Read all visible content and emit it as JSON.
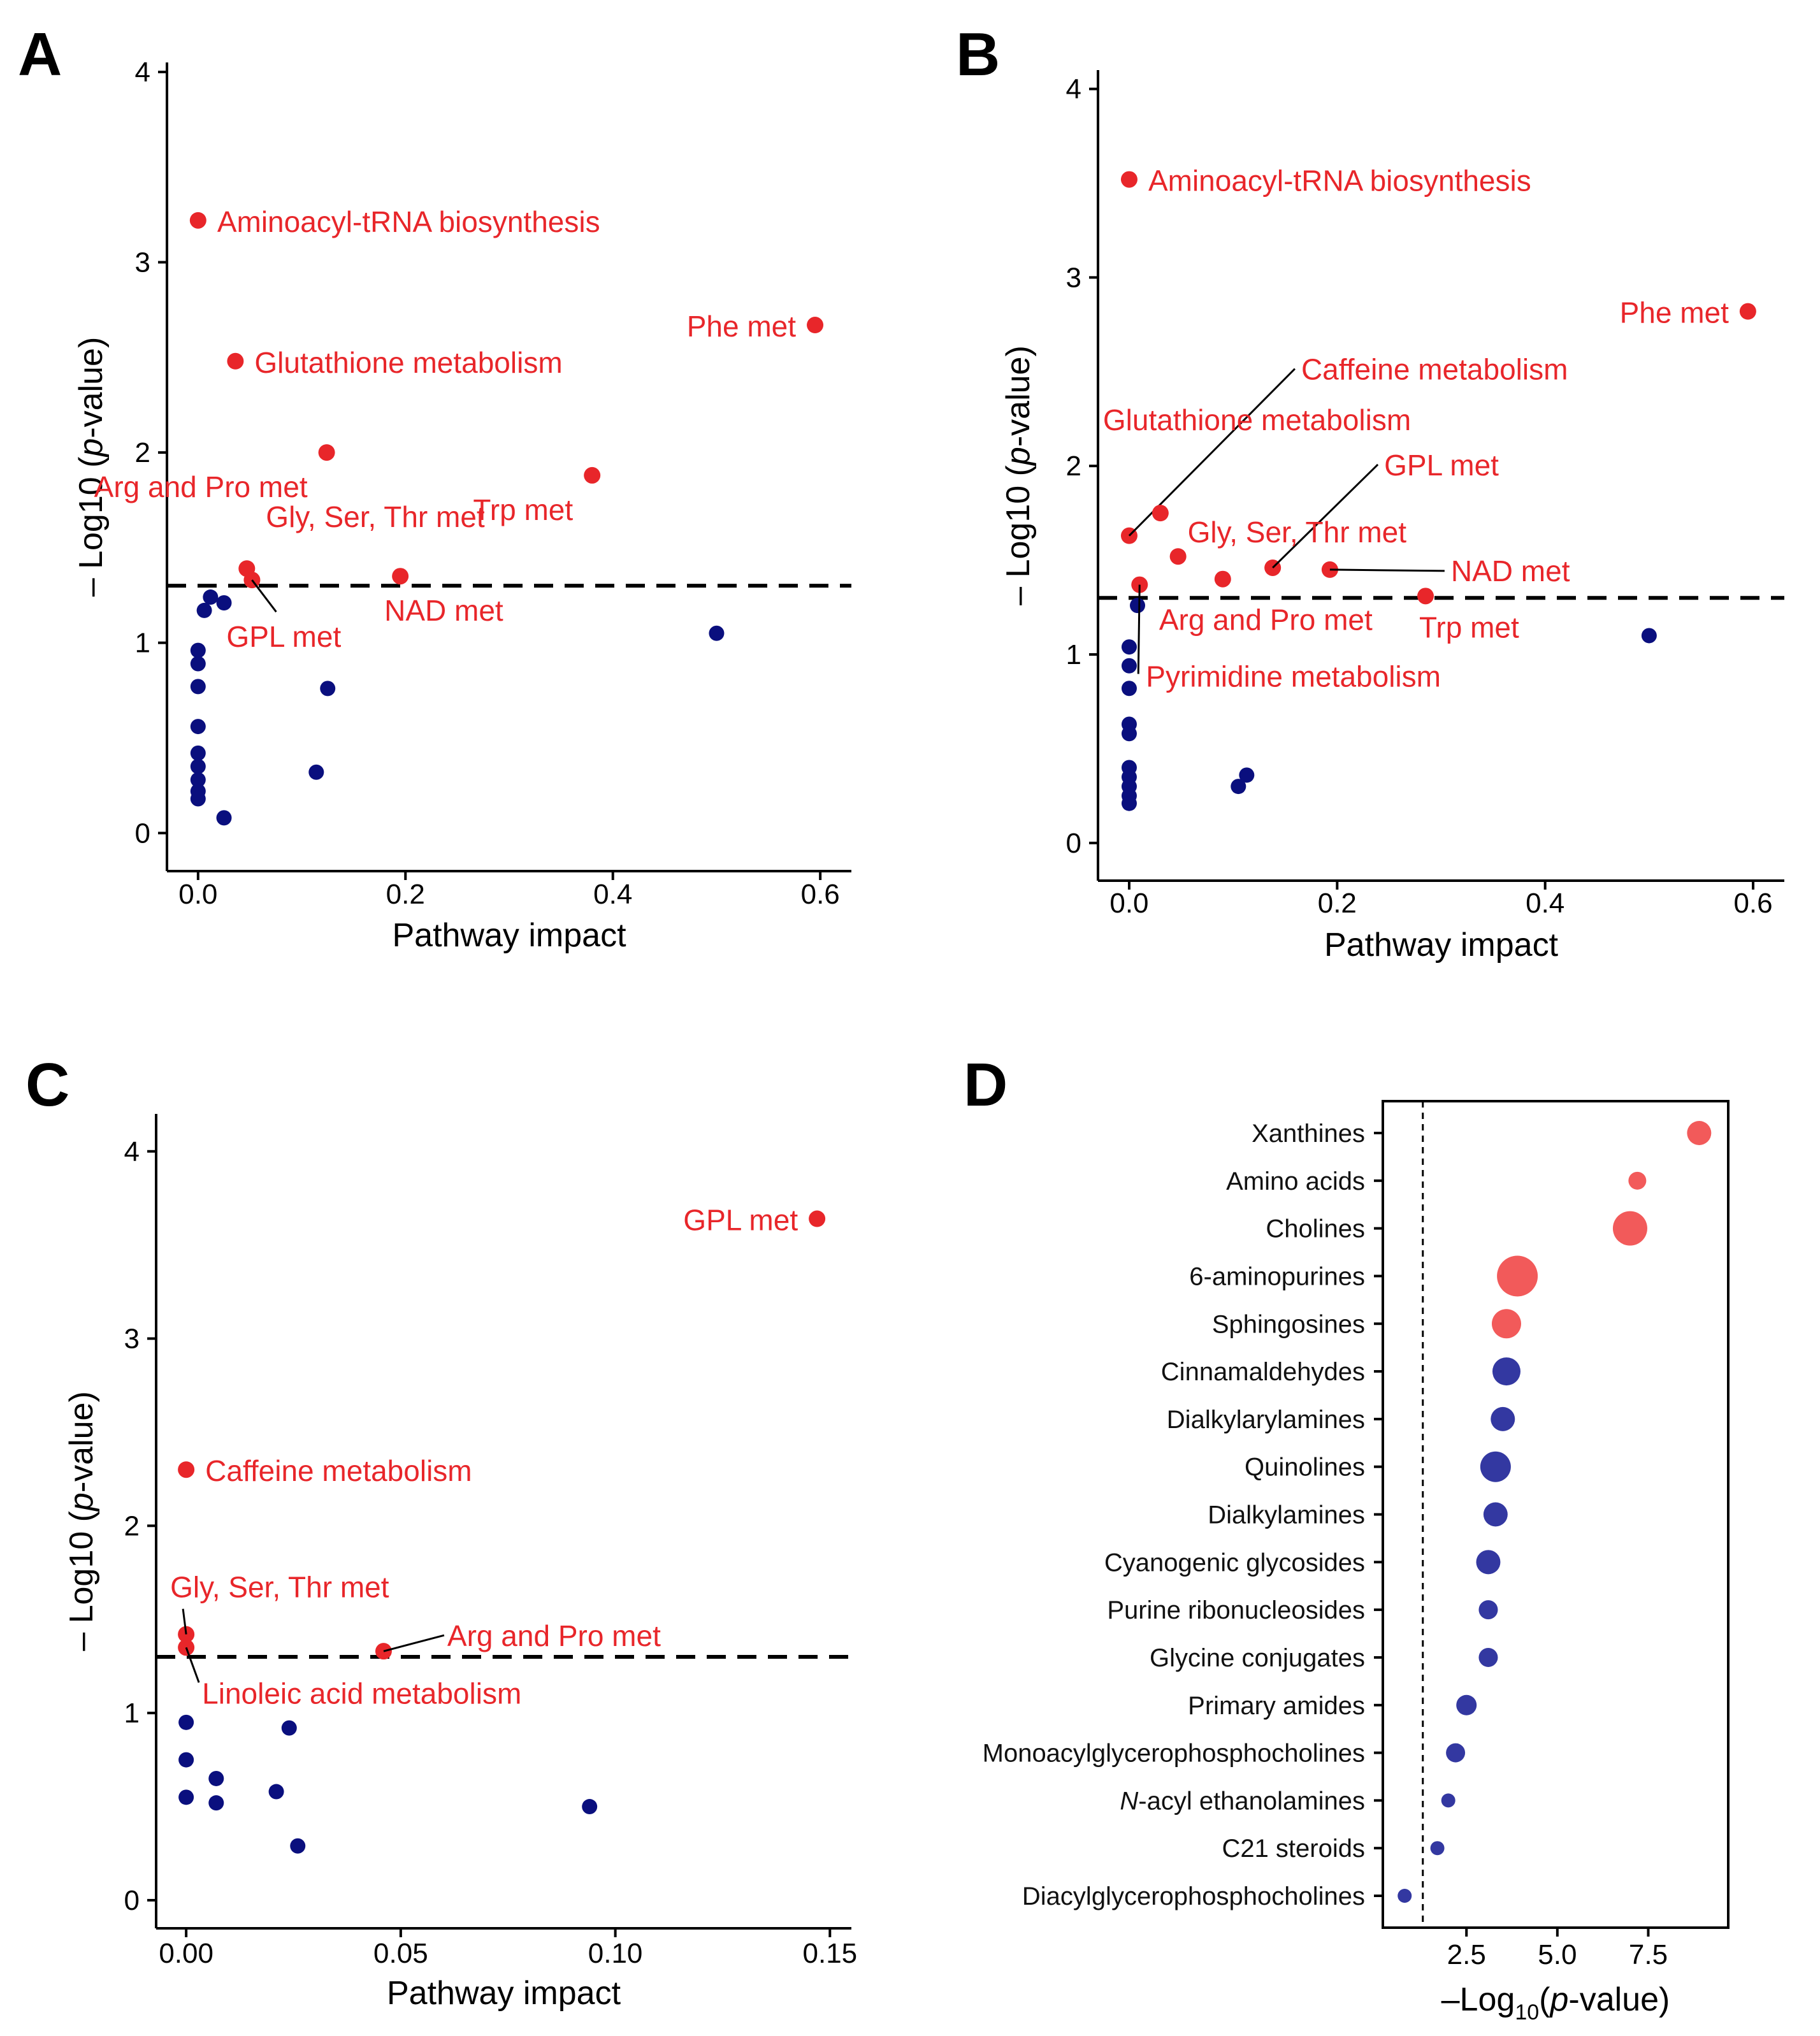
{
  "colors": {
    "significant": "#e8262a",
    "nonsignificant": "#0a0f7e",
    "d_significant": "#f25a5a",
    "d_nonsignificant": "#3338a1"
  },
  "chart_data": [
    {
      "panel": "A",
      "type": "scatter",
      "xlabel": "Pathway impact",
      "ylabel_prefix": "– Log10 (",
      "ylabel_italic": "p",
      "ylabel_suffix": "-value)",
      "xlim": [
        -0.03,
        0.63
      ],
      "ylim": [
        -0.2,
        4.05
      ],
      "xticks": [
        0.0,
        0.2,
        0.4,
        0.6
      ],
      "xtick_labels": [
        "0.0",
        "0.2",
        "0.4",
        "0.6"
      ],
      "yticks": [
        0,
        1,
        2,
        3,
        4
      ],
      "ytick_labels": [
        "0",
        "1",
        "2",
        "3",
        "4"
      ],
      "threshold": 1.3,
      "significant": [
        {
          "x": 0.0,
          "y": 3.22,
          "label": "Aminoacyl-tRNA biosynthesis"
        },
        {
          "x": 0.036,
          "y": 2.48,
          "label": "Glutathione metabolism"
        },
        {
          "x": 0.595,
          "y": 2.67,
          "label": "Phe met"
        },
        {
          "x": 0.124,
          "y": 2.0,
          "label": "Arg and Pro met"
        },
        {
          "x": 0.38,
          "y": 1.88,
          "label": "Trp met"
        },
        {
          "x": 0.047,
          "y": 1.39,
          "label": "Gly, Ser, Thr met"
        },
        {
          "x": 0.052,
          "y": 1.33,
          "label": "GPL met"
        },
        {
          "x": 0.195,
          "y": 1.35,
          "label": "NAD met"
        }
      ],
      "nonsignificant": [
        {
          "x": 0.012,
          "y": 1.24
        },
        {
          "x": 0.025,
          "y": 1.21
        },
        {
          "x": 0.006,
          "y": 1.17
        },
        {
          "x": 0.0,
          "y": 0.96
        },
        {
          "x": 0.0,
          "y": 0.89
        },
        {
          "x": 0.0,
          "y": 0.77
        },
        {
          "x": 0.0,
          "y": 0.56
        },
        {
          "x": 0.0,
          "y": 0.42
        },
        {
          "x": 0.0,
          "y": 0.35
        },
        {
          "x": 0.0,
          "y": 0.28
        },
        {
          "x": 0.0,
          "y": 0.22
        },
        {
          "x": 0.0,
          "y": 0.18
        },
        {
          "x": 0.025,
          "y": 0.08
        },
        {
          "x": 0.125,
          "y": 0.76
        },
        {
          "x": 0.114,
          "y": 0.32
        },
        {
          "x": 0.5,
          "y": 1.05
        }
      ]
    },
    {
      "panel": "B",
      "type": "scatter",
      "xlabel": "Pathway impact",
      "ylabel_prefix": "– Log10 (",
      "ylabel_italic": "p",
      "ylabel_suffix": "-value)",
      "xlim": [
        -0.03,
        0.63
      ],
      "ylim": [
        -0.2,
        4.1
      ],
      "xticks": [
        0.0,
        0.2,
        0.4,
        0.6
      ],
      "xtick_labels": [
        "0.0",
        "0.2",
        "0.4",
        "0.6"
      ],
      "yticks": [
        0,
        1,
        2,
        3,
        4
      ],
      "ytick_labels": [
        "0",
        "1",
        "2",
        "3",
        "4"
      ],
      "threshold": 1.3,
      "significant": [
        {
          "x": 0.0,
          "y": 3.52,
          "label": "Aminoacyl-tRNA biosynthesis"
        },
        {
          "x": 0.595,
          "y": 2.82,
          "label": "Phe met"
        },
        {
          "x": 0.0,
          "y": 1.63,
          "label": "Caffeine metabolism"
        },
        {
          "x": 0.03,
          "y": 1.75,
          "label": "Glutathione metabolism"
        },
        {
          "x": 0.138,
          "y": 1.46,
          "label": "GPL met"
        },
        {
          "x": 0.047,
          "y": 1.52,
          "label": "Gly, Ser, Thr met"
        },
        {
          "x": 0.193,
          "y": 1.45,
          "label": "NAD met"
        },
        {
          "x": 0.09,
          "y": 1.4,
          "label": "Arg and Pro met"
        },
        {
          "x": 0.285,
          "y": 1.31,
          "label": "Trp met"
        },
        {
          "x": 0.01,
          "y": 1.37,
          "label": "Pyrimidine metabolism"
        }
      ],
      "nonsignificant": [
        {
          "x": 0.008,
          "y": 1.26
        },
        {
          "x": 0.0,
          "y": 1.04
        },
        {
          "x": 0.0,
          "y": 0.94
        },
        {
          "x": 0.0,
          "y": 0.82
        },
        {
          "x": 0.0,
          "y": 0.63
        },
        {
          "x": 0.0,
          "y": 0.58
        },
        {
          "x": 0.0,
          "y": 0.4
        },
        {
          "x": 0.0,
          "y": 0.35
        },
        {
          "x": 0.0,
          "y": 0.3
        },
        {
          "x": 0.0,
          "y": 0.25
        },
        {
          "x": 0.0,
          "y": 0.21
        },
        {
          "x": 0.105,
          "y": 0.3
        },
        {
          "x": 0.113,
          "y": 0.36
        },
        {
          "x": 0.5,
          "y": 1.1
        }
      ]
    },
    {
      "panel": "C",
      "type": "scatter",
      "xlabel": "Pathway impact",
      "ylabel_prefix": "– Log10 (",
      "ylabel_italic": "p",
      "ylabel_suffix": "-value)",
      "xlim": [
        -0.007,
        0.155
      ],
      "ylim": [
        -0.15,
        4.2
      ],
      "xticks": [
        0.0,
        0.05,
        0.1,
        0.15
      ],
      "xtick_labels": [
        "0.00",
        "0.05",
        "0.10",
        "0.15"
      ],
      "yticks": [
        0,
        1,
        2,
        3,
        4
      ],
      "ytick_labels": [
        "0",
        "1",
        "2",
        "3",
        "4"
      ],
      "threshold": 1.3,
      "significant": [
        {
          "x": 0.147,
          "y": 3.64,
          "label": "GPL met"
        },
        {
          "x": 0.0,
          "y": 2.3,
          "label": "Caffeine metabolism"
        },
        {
          "x": 0.0,
          "y": 1.42,
          "label": "Gly, Ser, Thr met"
        },
        {
          "x": 0.0,
          "y": 1.35,
          "label": "Linoleic acid metabolism"
        },
        {
          "x": 0.046,
          "y": 1.33,
          "label": "Arg and Pro met"
        }
      ],
      "nonsignificant": [
        {
          "x": 0.0,
          "y": 0.95
        },
        {
          "x": 0.0,
          "y": 0.75
        },
        {
          "x": 0.0,
          "y": 0.55
        },
        {
          "x": 0.007,
          "y": 0.65
        },
        {
          "x": 0.007,
          "y": 0.52
        },
        {
          "x": 0.021,
          "y": 0.58
        },
        {
          "x": 0.024,
          "y": 0.92
        },
        {
          "x": 0.026,
          "y": 0.29
        },
        {
          "x": 0.094,
          "y": 0.5
        }
      ]
    },
    {
      "panel": "D",
      "type": "dot",
      "xlabel_prefix": "–Log",
      "xlabel_sub": "10",
      "xlabel_paren": "(",
      "xlabel_italic": "p",
      "xlabel_suffix": "-value)",
      "xlim": [
        0.2,
        9.7
      ],
      "xticks": [
        2.5,
        5.0,
        7.5
      ],
      "xtick_labels": [
        "2.5",
        "5.0",
        "7.5"
      ],
      "threshold": 1.3,
      "categories": [
        "Xanthines",
        "Amino acids",
        "Cholines",
        "6-aminopurines",
        "Sphingosines",
        "Cinnamaldehydes",
        "Dialkylarylamines",
        "Quinolines",
        "Dialkylamines",
        "Cyanogenic glycosides",
        "Purine ribonucleosides",
        "Glycine conjugates",
        "Primary amides",
        "Monoacylglycerophosphocholines",
        "N-acyl ethanolamines",
        "C21 steroids",
        "Diacylglycerophosphocholines"
      ],
      "italic_prefix": {
        "14": "N"
      },
      "values": [
        8.9,
        7.2,
        7.0,
        3.9,
        3.6,
        3.6,
        3.5,
        3.3,
        3.3,
        3.1,
        3.1,
        3.1,
        2.5,
        2.2,
        2.0,
        1.7,
        0.8
      ],
      "sizes": [
        19,
        14,
        27,
        32,
        23,
        22,
        19,
        24,
        19,
        19,
        15,
        15,
        16,
        15,
        11,
        11,
        11
      ],
      "significant": [
        true,
        true,
        true,
        true,
        true,
        false,
        false,
        false,
        false,
        false,
        false,
        false,
        false,
        false,
        false,
        false,
        false
      ]
    }
  ]
}
